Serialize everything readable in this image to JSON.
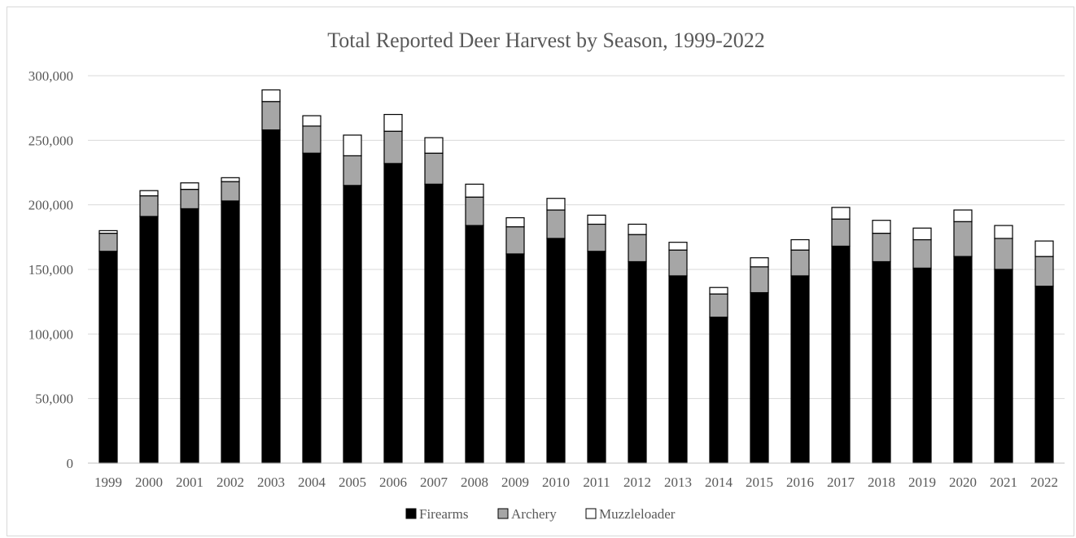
{
  "chart_data": {
    "type": "bar",
    "stacked": true,
    "title": "Total Reported Deer Harvest by Season, 1999-2022",
    "xlabel": "",
    "ylabel": "",
    "ylim": [
      0,
      300000
    ],
    "yticks": [
      0,
      50000,
      100000,
      150000,
      200000,
      250000,
      300000
    ],
    "ytick_labels": [
      "0",
      "50,000",
      "100,000",
      "150,000",
      "200,000",
      "250,000",
      "300,000"
    ],
    "grid": true,
    "legend_position": "bottom",
    "categories": [
      "1999",
      "2000",
      "2001",
      "2002",
      "2003",
      "2004",
      "2005",
      "2006",
      "2007",
      "2008",
      "2009",
      "2010",
      "2011",
      "2012",
      "2013",
      "2014",
      "2015",
      "2016",
      "2017",
      "2018",
      "2019",
      "2020",
      "2021",
      "2022"
    ],
    "series": [
      {
        "name": "Firearms",
        "color": "#000000",
        "values": [
          164000,
          191000,
          197000,
          203000,
          258000,
          240000,
          215000,
          232000,
          216000,
          184000,
          162000,
          174000,
          164000,
          156000,
          145000,
          113000,
          132000,
          145000,
          168000,
          156000,
          151000,
          160000,
          150000,
          137000
        ]
      },
      {
        "name": "Archery",
        "color": "#a6a6a6",
        "values": [
          14000,
          16000,
          15000,
          15000,
          22000,
          21000,
          23000,
          25000,
          24000,
          22000,
          21000,
          22000,
          21000,
          21000,
          20000,
          18000,
          20000,
          20000,
          21000,
          22000,
          22000,
          27000,
          24000,
          23000
        ]
      },
      {
        "name": "Muzzleloader",
        "color": "#ffffff",
        "values": [
          2000,
          4000,
          5000,
          3000,
          9000,
          8000,
          16000,
          13000,
          12000,
          10000,
          7000,
          9000,
          7000,
          8000,
          6000,
          5000,
          7000,
          8000,
          9000,
          10000,
          9000,
          9000,
          10000,
          12000
        ]
      }
    ]
  }
}
